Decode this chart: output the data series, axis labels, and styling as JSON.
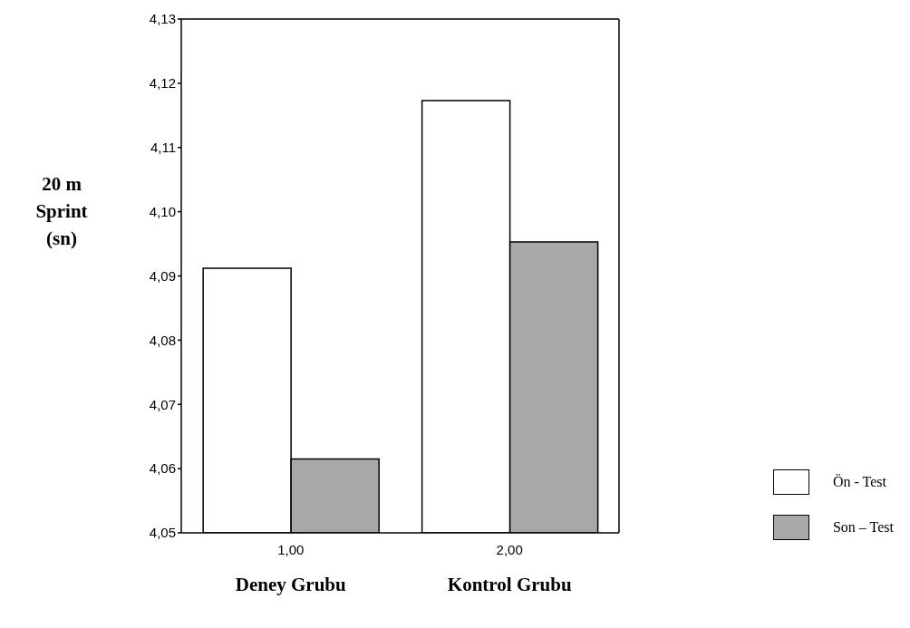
{
  "chart_data": {
    "type": "bar",
    "ylabel": "20 m Sprint (sn)",
    "categories": [
      "1,00",
      "2,00"
    ],
    "series": [
      {
        "name": "Ön - Test",
        "color": "#ffffff",
        "values": [
          4.0912,
          4.1173
        ]
      },
      {
        "name": "Son – Test",
        "color": "#a8a8a8",
        "values": [
          4.0615,
          4.0953
        ]
      }
    ],
    "ylim": [
      4.05,
      4.13
    ],
    "yticks": [
      {
        "value": 4.05,
        "label": "4,05"
      },
      {
        "value": 4.06,
        "label": "4,06"
      },
      {
        "value": 4.07,
        "label": "4,07"
      },
      {
        "value": 4.08,
        "label": "4,08"
      },
      {
        "value": 4.09,
        "label": "4,09"
      },
      {
        "value": 4.1,
        "label": "4,10"
      },
      {
        "value": 4.11,
        "label": "4,11"
      },
      {
        "value": 4.12,
        "label": "4,12"
      },
      {
        "value": 4.13,
        "label": "4,13"
      }
    ],
    "annotations": [
      "Deney Grubu",
      "Kontrol Grubu"
    ],
    "grid": false,
    "legend": "bottom right"
  }
}
